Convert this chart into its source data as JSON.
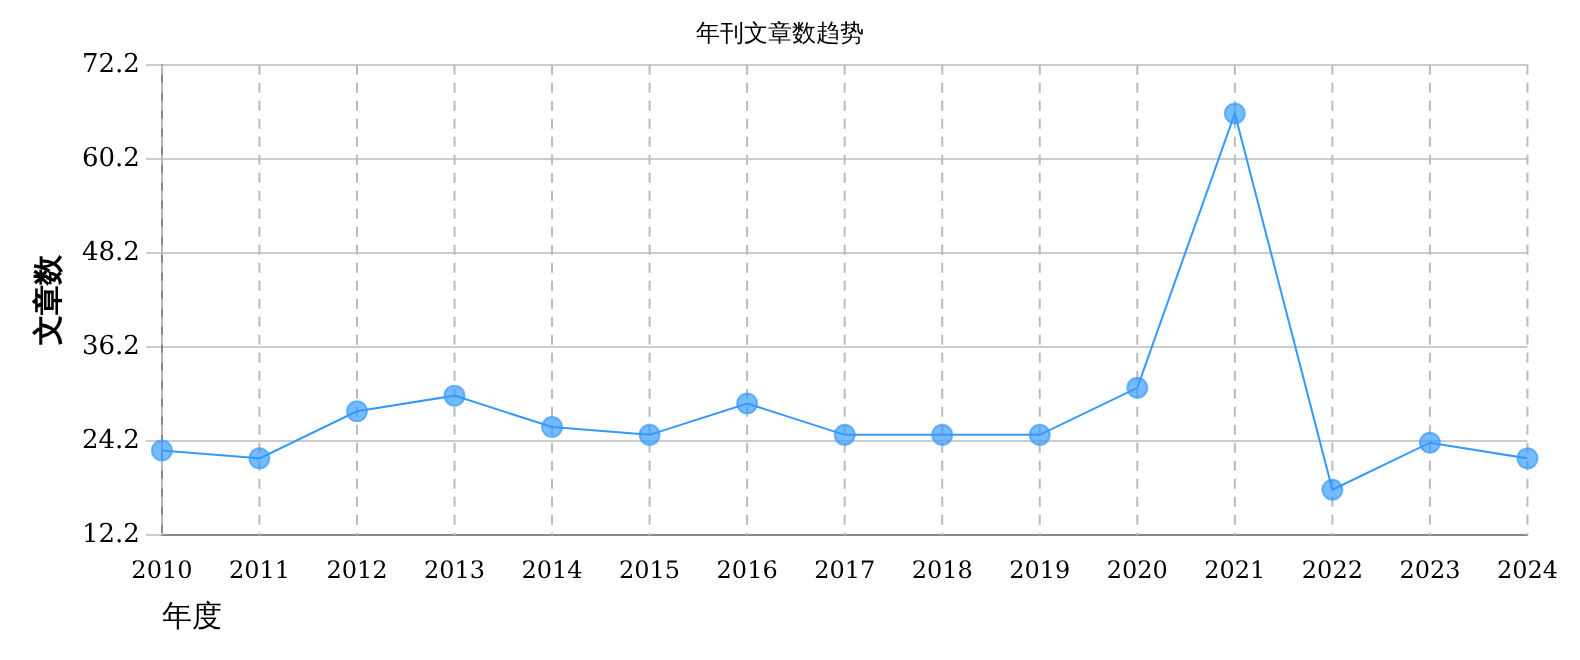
{
  "chart_data": {
    "type": "line",
    "title": "年刊文章数趋势",
    "xlabel": "年度",
    "ylabel": "文章数",
    "categories": [
      "2010",
      "2011",
      "2012",
      "2013",
      "2014",
      "2015",
      "2016",
      "2017",
      "2018",
      "2019",
      "2020",
      "2021",
      "2022",
      "2023",
      "2024"
    ],
    "series": [
      {
        "color": "#3399ff",
        "values": [
          23,
          22,
          28,
          30,
          26,
          25,
          29,
          25,
          25,
          25,
          31,
          66,
          18,
          24,
          22
        ]
      }
    ],
    "ylim": [
      12.2,
      72.2
    ],
    "yticks": [
      12.2,
      24.2,
      36.2,
      48.2,
      60.2,
      72.2
    ],
    "grid": true,
    "legend": false,
    "marker": "circle",
    "line_style": "solid"
  }
}
